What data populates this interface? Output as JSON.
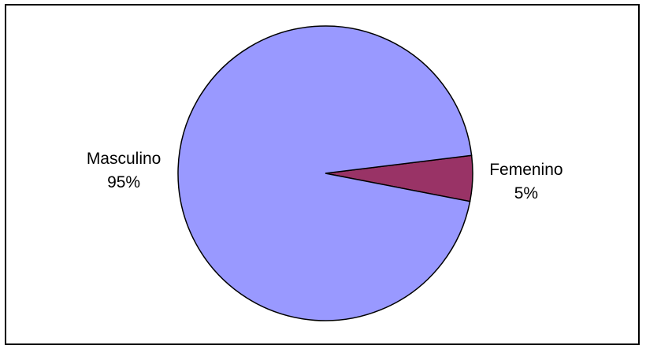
{
  "chart_data": {
    "type": "pie",
    "title": "",
    "slices": [
      {
        "label": "Femenino",
        "value": 5,
        "value_label": "5%",
        "color": "#993366"
      },
      {
        "label": "Masculino",
        "value": 95,
        "value_label": "95%",
        "color": "#9999ff"
      }
    ],
    "start_angle_deg": -11,
    "direction": "counterclockwise",
    "legend": "none",
    "label_position": "outside"
  }
}
